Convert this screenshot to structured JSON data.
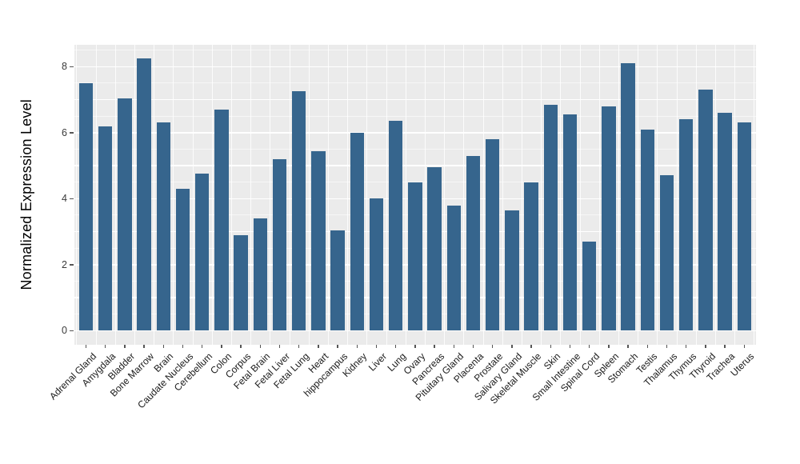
{
  "chart_data": {
    "type": "bar",
    "title": "",
    "xlabel": "",
    "ylabel": "Normalized Expression Level",
    "legend": "none",
    "grid": "on",
    "panel_bg": "#EBEBEB",
    "grid_color": "#FFFFFF",
    "bar_color": "#36658D",
    "tick_color": "#555555",
    "ylim": [
      -0.43,
      8.66
    ],
    "yticks": [
      0,
      2,
      4,
      6,
      8
    ],
    "categories": [
      "Adrenal Gland",
      "Amygdala",
      "Bladder",
      "Bone Marrow",
      "Brain",
      "Caudate Nucleus",
      "Cerebellum",
      "Colon",
      "Corpus",
      "Fetal Brain",
      "Fetal Liver",
      "Fetal Lung",
      "Heart",
      "hippocampus",
      "Kidney",
      "Liver",
      "Lung",
      "Ovary",
      "Pancreas",
      "Pituitary Gland",
      "Placenta",
      "Prostate",
      "Salivary Gland",
      "Skeletal Muscle",
      "Skin",
      "Small Intestine",
      "Spinal Cord",
      "Spleen",
      "Stomach",
      "Testis",
      "Thalamus",
      "Thymus",
      "Thyroid",
      "Trachea",
      "Uterus"
    ],
    "values": [
      7.5,
      6.2,
      7.05,
      8.25,
      6.3,
      4.3,
      4.75,
      6.7,
      2.9,
      3.4,
      5.2,
      7.25,
      5.45,
      3.05,
      6.0,
      4.0,
      6.35,
      4.5,
      4.95,
      3.8,
      5.3,
      5.8,
      3.65,
      4.5,
      6.85,
      6.55,
      2.7,
      6.8,
      8.1,
      6.1,
      4.7,
      6.4,
      7.3,
      6.6,
      6.3
    ]
  }
}
